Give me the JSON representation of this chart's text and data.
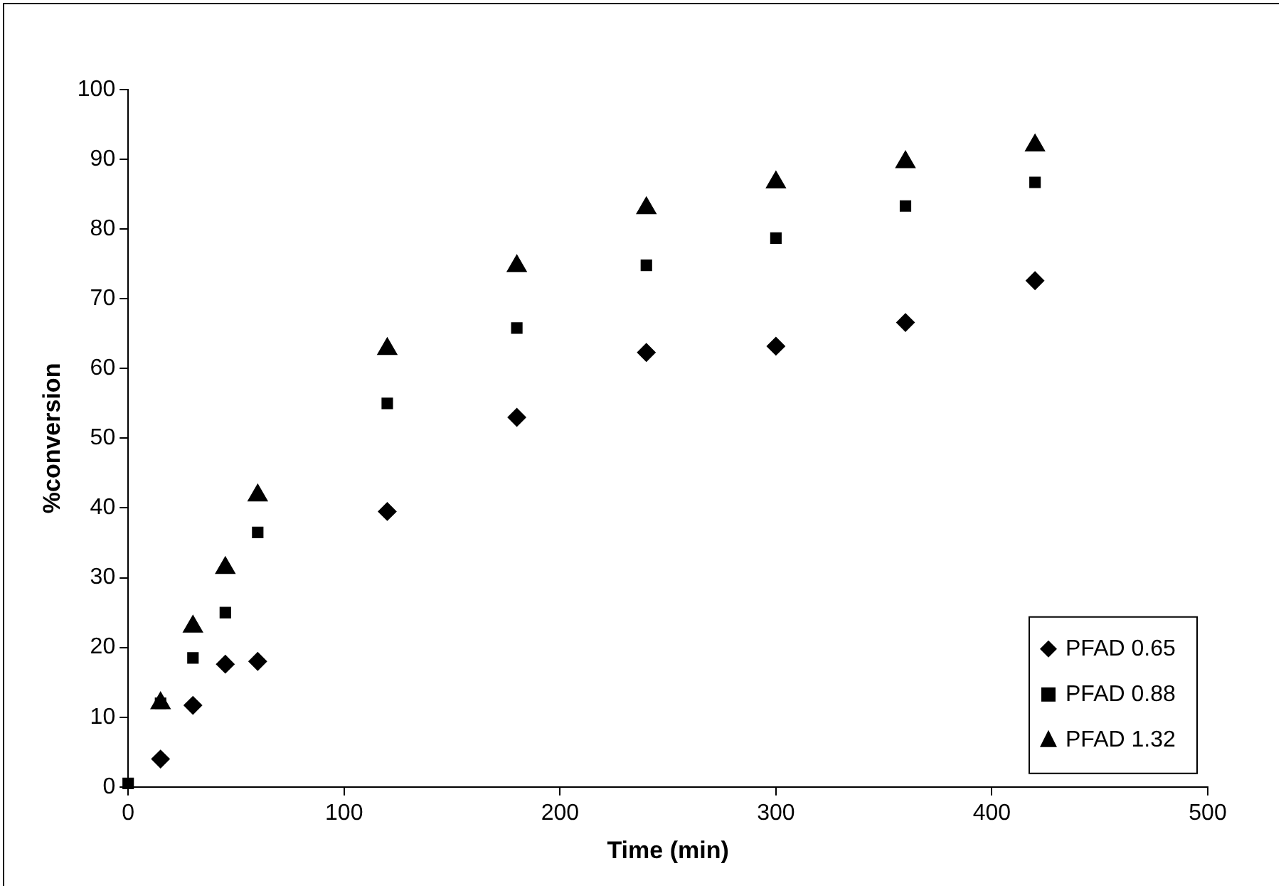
{
  "chart_data": {
    "type": "scatter",
    "xlabel": "Time (min)",
    "ylabel": "%conversion",
    "xlim": [
      0,
      500
    ],
    "xticks": [
      0,
      100,
      200,
      300,
      400,
      500
    ],
    "ylim": [
      0,
      100
    ],
    "yticks": [
      0,
      10,
      20,
      30,
      40,
      50,
      60,
      70,
      80,
      90,
      100
    ],
    "grid": false,
    "legend": "bottom right",
    "series": [
      {
        "name": "PFAD 0.65",
        "color": "#000000",
        "marker": "diamond",
        "x": [
          15,
          30,
          45,
          60,
          120,
          180,
          240,
          300,
          360,
          420
        ],
        "values": [
          4,
          11.7,
          17.6,
          18,
          39.5,
          53,
          62.3,
          63.2,
          66.6,
          72.6
        ]
      },
      {
        "name": "PFAD 0.88",
        "color": "#000000",
        "marker": "square",
        "x": [
          0,
          15,
          30,
          45,
          60,
          120,
          180,
          240,
          300,
          360,
          420
        ],
        "values": [
          0.5,
          12,
          18.5,
          25,
          36.5,
          55,
          65.8,
          74.8,
          78.7,
          83.3,
          86.7
        ]
      },
      {
        "name": "PFAD 1.32",
        "color": "#000000",
        "marker": "triangle",
        "x": [
          15,
          30,
          45,
          60,
          120,
          180,
          240,
          300,
          360,
          420
        ],
        "values": [
          12,
          23,
          31.4,
          41.8,
          62.8,
          74.7,
          83,
          86.7,
          89.6,
          92
        ]
      }
    ]
  }
}
